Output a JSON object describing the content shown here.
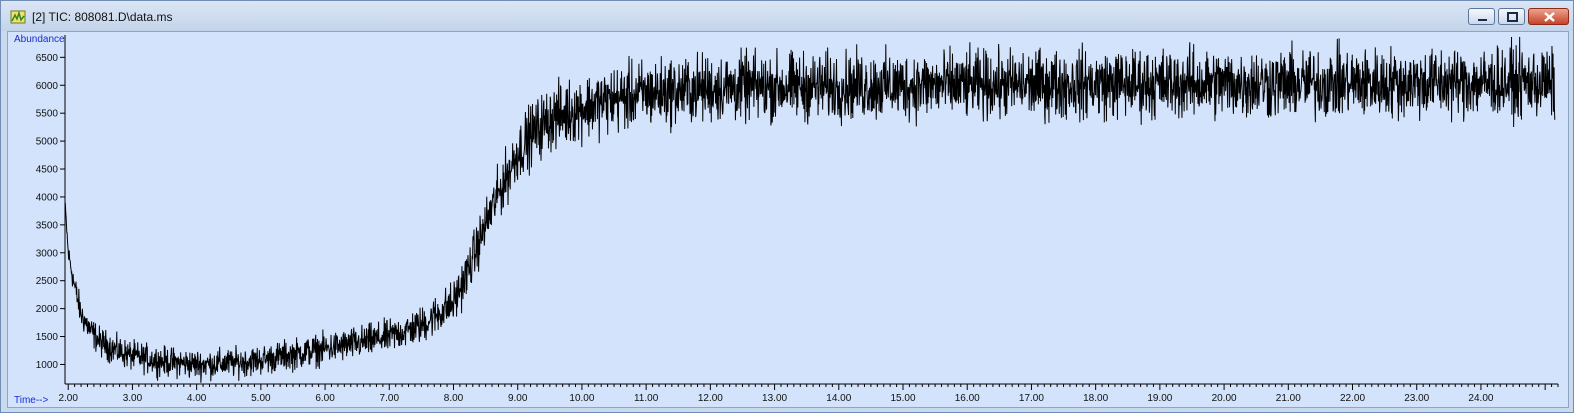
{
  "window": {
    "title": "[2] TIC: 808081.D\\data.ms",
    "icons": {
      "app": "chromatogram-app-icon",
      "minimize": "minimize-icon",
      "maximize": "maximize-icon",
      "close": "close-icon"
    },
    "colors": {
      "plot_background": "#d2e3fb",
      "axis_label": "#1c2bd1",
      "trace": "#000000",
      "close_button": "#c8432a"
    }
  },
  "chart_data": {
    "type": "line",
    "ylabel": "Abundance",
    "xlabel": "Time-->",
    "xlim": [
      1.95,
      25.2
    ],
    "ylim": [
      650,
      6900
    ],
    "grid": false,
    "x_ticks": [
      "2.00",
      "3.00",
      "4.00",
      "5.00",
      "6.00",
      "7.00",
      "8.00",
      "9.00",
      "10.00",
      "11.00",
      "12.00",
      "13.00",
      "14.00",
      "15.00",
      "16.00",
      "17.00",
      "18.00",
      "19.00",
      "20.00",
      "21.00",
      "22.00",
      "23.00",
      "24.00"
    ],
    "y_ticks": [
      "1000",
      "1500",
      "2000",
      "2500",
      "3000",
      "3500",
      "4000",
      "4500",
      "5000",
      "5500",
      "6000",
      "6500"
    ],
    "series": [
      {
        "x": [
          1.95,
          2.0,
          2.1,
          2.2,
          2.35,
          2.5,
          2.75,
          3.0,
          3.5,
          4.0,
          4.5,
          5.0,
          5.5,
          6.0,
          6.5,
          7.0,
          7.5,
          8.0,
          8.2,
          8.4,
          8.6,
          8.8,
          9.0,
          9.2,
          9.5,
          10.0,
          10.5,
          11.0,
          12.0,
          13.0,
          14.0,
          15.0,
          16.0,
          17.0,
          18.0,
          19.0,
          20.0,
          21.0,
          22.0,
          23.0,
          24.0,
          25.0,
          25.15
        ],
        "y": [
          3900,
          3000,
          2400,
          1900,
          1600,
          1400,
          1250,
          1150,
          1050,
          1000,
          1020,
          1080,
          1180,
          1280,
          1380,
          1500,
          1700,
          2100,
          2600,
          3200,
          3800,
          4300,
          4800,
          5100,
          5400,
          5600,
          5750,
          5850,
          5950,
          5970,
          5980,
          5990,
          6000,
          6010,
          6020,
          6030,
          6030,
          6030,
          6040,
          6040,
          6050,
          6050,
          6000
        ],
        "noise_amplitude": [
          50,
          120,
          150,
          160,
          160,
          160,
          160,
          160,
          160,
          160,
          160,
          160,
          170,
          170,
          180,
          180,
          200,
          240,
          250,
          270,
          280,
          300,
          320,
          340,
          350,
          350,
          360,
          370,
          370,
          370,
          370,
          370,
          370,
          370,
          380,
          380,
          380,
          380,
          380,
          380,
          380,
          380,
          380
        ]
      }
    ]
  }
}
